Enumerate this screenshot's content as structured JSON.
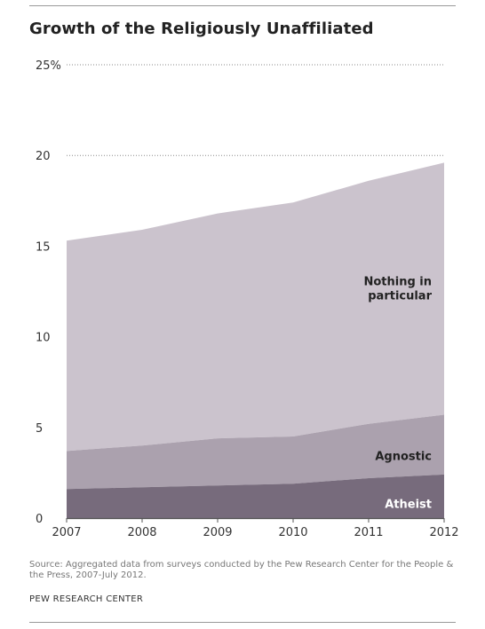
{
  "title": "Growth of the Religiously Unaffiliated",
  "source": "Source: Aggregated data from surveys conducted by the Pew Research Center for the People & the Press, 2007-July 2012.",
  "org": "PEW RESEARCH CENTER",
  "chart_data": {
    "type": "area",
    "stacked": true,
    "x": [
      "2007",
      "2008",
      "2009",
      "2010",
      "2011",
      "2012"
    ],
    "series": [
      {
        "name": "Atheist",
        "values": [
          1.6,
          1.7,
          1.8,
          1.9,
          2.2,
          2.4
        ],
        "color": "#776b7c"
      },
      {
        "name": "Agnostic",
        "values": [
          2.1,
          2.3,
          2.6,
          2.6,
          3.0,
          3.3
        ],
        "color": "#aba1ae"
      },
      {
        "name": "Nothing in particular",
        "values": [
          11.6,
          11.9,
          12.4,
          12.9,
          13.4,
          13.9
        ],
        "color": "#cbc3cd"
      }
    ],
    "series_label_lines": [
      [
        "Atheist"
      ],
      [
        "Agnostic"
      ],
      [
        "Nothing in",
        "particular"
      ]
    ],
    "ylim": [
      0,
      25
    ],
    "yticks": [
      "0",
      "5",
      "10",
      "15",
      "20",
      "25%"
    ],
    "gridlines_at": [
      20,
      25
    ],
    "grid": "dotted at top only",
    "xlabel": "",
    "ylabel": ""
  }
}
